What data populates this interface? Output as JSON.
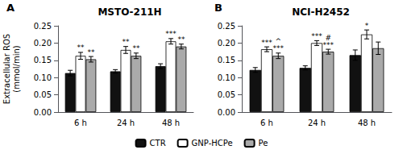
{
  "chart_data": [
    {
      "type": "bar",
      "title": "MSTO-211H",
      "ylabel": "Extracellular ROS\n(mmol/min)",
      "categories": [
        "6 h",
        "24 h",
        "48 h"
      ],
      "series": [
        {
          "name": "CTR",
          "color": "#111111",
          "values": [
            0.113,
            0.118,
            0.133
          ],
          "errors": [
            0.008,
            0.005,
            0.007
          ]
        },
        {
          "name": "GNP-HCPe",
          "color": "#ffffff",
          "values": [
            0.163,
            0.18,
            0.205
          ],
          "errors": [
            0.01,
            0.01,
            0.008
          ]
        },
        {
          "name": "Pe",
          "color": "#aaaaaa",
          "values": [
            0.153,
            0.163,
            0.19
          ],
          "errors": [
            0.008,
            0.008,
            0.007
          ]
        }
      ],
      "ylim": [
        0.0,
        0.25
      ],
      "yticks": [
        {
          "value": 0.0,
          "label": "0.00"
        },
        0.05,
        {
          "value": 0.1,
          "label": "0.10"
        },
        0.15,
        {
          "value": 0.2,
          "label": "0.20"
        },
        0.25
      ],
      "grid": false,
      "legend": "bottom",
      "annotations": [
        {
          "text": "A"
        },
        {
          "series": "GNP-HCPe",
          "category": "6 h",
          "text": "**"
        },
        {
          "series": "Pe",
          "category": "6 h",
          "text": "**"
        },
        {
          "series": "GNP-HCPe",
          "category": "24 h",
          "text": "**"
        },
        {
          "series": "Pe",
          "category": "24 h",
          "text": "**"
        },
        {
          "series": "GNP-HCPe",
          "category": "48 h",
          "text": "***"
        },
        {
          "series": "Pe",
          "category": "48 h",
          "text": "**"
        }
      ]
    },
    {
      "type": "bar",
      "title": "NCI-H2452",
      "categories": [
        "6 h",
        "24 h",
        "48 h"
      ],
      "series": [
        {
          "name": "CTR",
          "color": "#111111",
          "values": [
            0.122,
            0.128,
            0.165
          ],
          "errors": [
            0.007,
            0.006,
            0.015
          ]
        },
        {
          "name": "GNP-HCPe",
          "color": "#ffffff",
          "values": [
            0.182,
            0.2,
            0.225
          ],
          "errors": [
            0.007,
            0.007,
            0.013
          ]
        },
        {
          "name": "Pe",
          "color": "#aaaaaa",
          "values": [
            0.163,
            0.175,
            0.185
          ],
          "errors": [
            0.008,
            0.007,
            0.018
          ]
        }
      ],
      "ylim": [
        0.0,
        0.25
      ],
      "yticks": [
        {
          "value": 0.0,
          "label": "0.00"
        },
        0.05,
        {
          "value": 0.1,
          "label": "0.10"
        },
        0.15,
        {
          "value": 0.2,
          "label": "0.20"
        },
        0.25
      ],
      "grid": false,
      "legend": "bottom",
      "annotations": [
        {
          "text": "B"
        },
        {
          "series": "GNP-HCPe",
          "category": "6 h",
          "text": "***"
        },
        {
          "series": "Pe",
          "category": "6 h",
          "text": "***"
        },
        {
          "series": "Pe",
          "category": "6 h",
          "text": "^"
        },
        {
          "series": "GNP-HCPe",
          "category": "24 h",
          "text": "***"
        },
        {
          "series": "Pe",
          "category": "24 h",
          "text": "***"
        },
        {
          "series": "Pe",
          "category": "24 h",
          "text": "#"
        },
        {
          "series": "GNP-HCPe",
          "category": "48 h",
          "text": "*"
        }
      ]
    }
  ]
}
